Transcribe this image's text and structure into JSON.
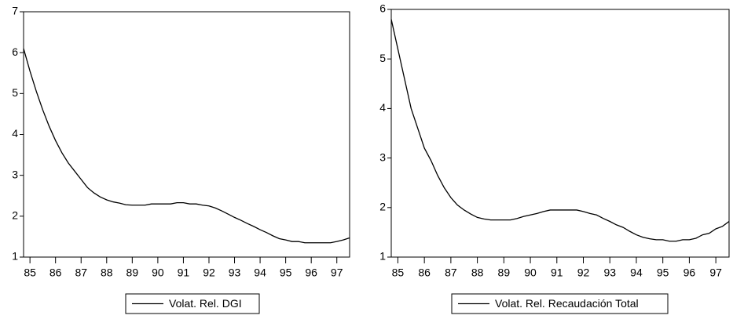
{
  "chart_data": [
    {
      "type": "line",
      "x": [
        84.75,
        85,
        85.25,
        85.5,
        85.75,
        86,
        86.25,
        86.5,
        86.75,
        87,
        87.25,
        87.5,
        87.75,
        88,
        88.25,
        88.5,
        88.75,
        89,
        89.25,
        89.5,
        89.75,
        90,
        90.25,
        90.5,
        90.75,
        91,
        91.25,
        91.5,
        91.75,
        92,
        92.25,
        92.5,
        92.75,
        93,
        93.25,
        93.5,
        93.75,
        94,
        94.25,
        94.5,
        94.75,
        95,
        95.25,
        95.5,
        95.75,
        96,
        96.25,
        96.5,
        96.75,
        97,
        97.25,
        97.5
      ],
      "series": [
        {
          "name": "Volat. Rel. DGI",
          "color": "#000000",
          "values": [
            6.1,
            5.55,
            5.05,
            4.6,
            4.2,
            3.85,
            3.55,
            3.3,
            3.1,
            2.9,
            2.7,
            2.57,
            2.47,
            2.4,
            2.35,
            2.32,
            2.28,
            2.27,
            2.27,
            2.27,
            2.3,
            2.3,
            2.3,
            2.3,
            2.33,
            2.33,
            2.3,
            2.3,
            2.27,
            2.25,
            2.2,
            2.13,
            2.05,
            1.97,
            1.9,
            1.82,
            1.75,
            1.67,
            1.6,
            1.52,
            1.45,
            1.42,
            1.38,
            1.38,
            1.35,
            1.35,
            1.35,
            1.35,
            1.35,
            1.38,
            1.42,
            1.47
          ]
        }
      ],
      "xlim": [
        84.75,
        97.5
      ],
      "xticks": [
        85,
        86,
        87,
        88,
        89,
        90,
        91,
        92,
        93,
        94,
        95,
        96,
        97
      ],
      "ylim": [
        1,
        7
      ],
      "yticks": [
        1,
        2,
        3,
        4,
        5,
        6,
        7
      ]
    },
    {
      "type": "line",
      "x": [
        84.75,
        85,
        85.25,
        85.5,
        85.75,
        86,
        86.25,
        86.5,
        86.75,
        87,
        87.25,
        87.5,
        87.75,
        88,
        88.25,
        88.5,
        88.75,
        89,
        89.25,
        89.5,
        89.75,
        90,
        90.25,
        90.5,
        90.75,
        91,
        91.25,
        91.5,
        91.75,
        92,
        92.25,
        92.5,
        92.75,
        93,
        93.25,
        93.5,
        93.75,
        94,
        94.25,
        94.5,
        94.75,
        95,
        95.25,
        95.5,
        95.75,
        96,
        96.25,
        96.5,
        96.75,
        97,
        97.25,
        97.5
      ],
      "series": [
        {
          "name": "Volat. Rel. Recaudación Total",
          "color": "#000000",
          "values": [
            5.8,
            5.2,
            4.6,
            4.0,
            3.6,
            3.2,
            2.95,
            2.65,
            2.4,
            2.2,
            2.05,
            1.95,
            1.87,
            1.8,
            1.77,
            1.75,
            1.75,
            1.75,
            1.75,
            1.78,
            1.82,
            1.85,
            1.88,
            1.92,
            1.95,
            1.95,
            1.95,
            1.95,
            1.95,
            1.92,
            1.88,
            1.85,
            1.78,
            1.72,
            1.65,
            1.6,
            1.52,
            1.45,
            1.4,
            1.37,
            1.35,
            1.35,
            1.32,
            1.32,
            1.35,
            1.35,
            1.38,
            1.45,
            1.48,
            1.57,
            1.62,
            1.72
          ]
        }
      ],
      "xlim": [
        84.75,
        97.5
      ],
      "xticks": [
        85,
        86,
        87,
        88,
        89,
        90,
        91,
        92,
        93,
        94,
        95,
        96,
        97
      ],
      "ylim": [
        1,
        6
      ],
      "yticks": [
        1,
        2,
        3,
        4,
        5,
        6
      ]
    }
  ]
}
